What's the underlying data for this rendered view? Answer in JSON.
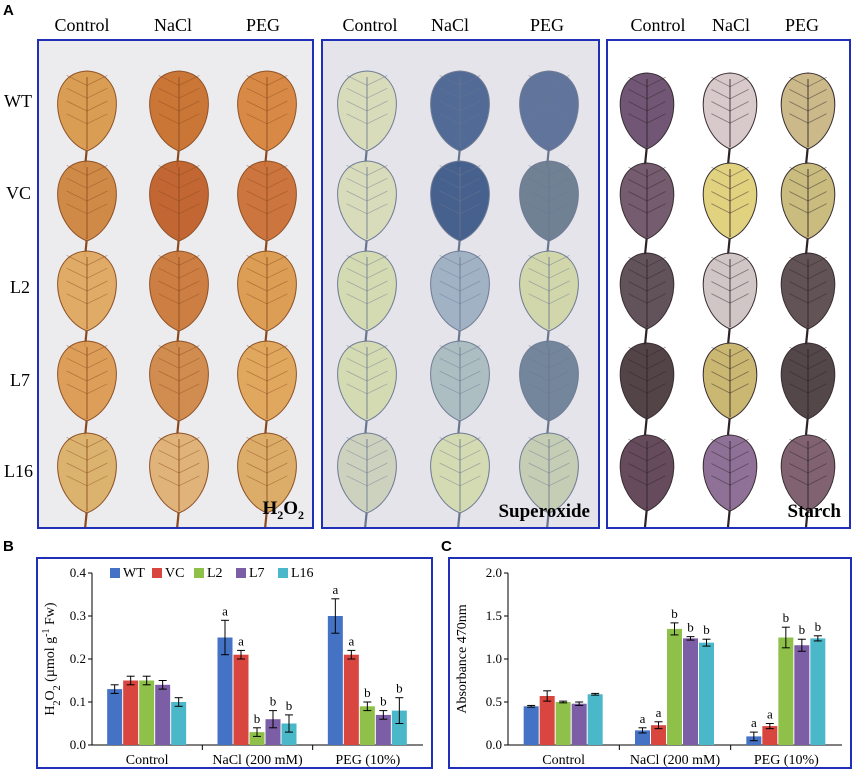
{
  "panels": {
    "a_letter": "A",
    "b_letter": "B",
    "c_letter": "C"
  },
  "photo_panel": {
    "treatments": [
      "Control",
      "NaCl",
      "PEG"
    ],
    "lines": [
      "WT",
      "VC",
      "L2",
      "L7",
      "L16"
    ],
    "stains": [
      "H2O2",
      "Superoxide",
      "Starch"
    ],
    "stain_colors": {
      "h2o2": "#c47a2c",
      "superoxide_blue": "#3e5a8e",
      "superoxide_pale": "#d8dcb8",
      "starch_dark": "#4a3a4a",
      "starch_pale": "#e2d39a"
    }
  },
  "chart_data": [
    {
      "type": "bar",
      "title": "",
      "ylabel": "H2O2 (µmol g-1 Fw)",
      "xlabel": "",
      "categories": [
        "Control",
        "NaCl (200 mM)",
        "PEG (10%)"
      ],
      "ylim": [
        0.0,
        0.4
      ],
      "yticks": [
        "0.0",
        "0.1",
        "0.2",
        "0.3",
        "0.4"
      ],
      "series": [
        {
          "name": "WT",
          "color": "#4472c4",
          "values": [
            0.13,
            0.25,
            0.3
          ],
          "errors": [
            0.01,
            0.04,
            0.04
          ],
          "letters": [
            "",
            "a",
            "a"
          ]
        },
        {
          "name": "VC",
          "color": "#d9453f",
          "values": [
            0.15,
            0.21,
            0.21
          ],
          "errors": [
            0.01,
            0.01,
            0.01
          ],
          "letters": [
            "",
            "a",
            "a"
          ]
        },
        {
          "name": "L2",
          "color": "#8fc14a",
          "values": [
            0.15,
            0.03,
            0.09
          ],
          "errors": [
            0.01,
            0.01,
            0.01
          ],
          "letters": [
            "",
            "b",
            "b"
          ]
        },
        {
          "name": "L7",
          "color": "#7c5ea6",
          "values": [
            0.14,
            0.06,
            0.07
          ],
          "errors": [
            0.01,
            0.02,
            0.01
          ],
          "letters": [
            "",
            "b",
            "b"
          ]
        },
        {
          "name": "L16",
          "color": "#4bb8c9",
          "values": [
            0.1,
            0.05,
            0.08
          ],
          "errors": [
            0.01,
            0.02,
            0.03
          ],
          "letters": [
            "",
            "b",
            "b"
          ]
        }
      ],
      "legend": "top"
    },
    {
      "type": "bar",
      "title": "",
      "ylabel": "Absorbance 470nm",
      "xlabel": "",
      "categories": [
        "Control",
        "NaCl (200 mM)",
        "PEG (10%)"
      ],
      "ylim": [
        0.0,
        2.0
      ],
      "yticks": [
        "0.0",
        "0.5",
        "1.0",
        "1.5",
        "2.0"
      ],
      "series": [
        {
          "name": "WT",
          "color": "#4472c4",
          "values": [
            0.45,
            0.17,
            0.1
          ],
          "errors": [
            0.01,
            0.03,
            0.05
          ],
          "letters": [
            "",
            "a",
            "a"
          ]
        },
        {
          "name": "VC",
          "color": "#d9453f",
          "values": [
            0.57,
            0.23,
            0.22
          ],
          "errors": [
            0.06,
            0.04,
            0.03
          ],
          "letters": [
            "",
            "a",
            "a"
          ]
        },
        {
          "name": "L2",
          "color": "#8fc14a",
          "values": [
            0.5,
            1.35,
            1.25
          ],
          "errors": [
            0.01,
            0.07,
            0.12
          ],
          "letters": [
            "",
            "b",
            "b"
          ]
        },
        {
          "name": "L7",
          "color": "#7c5ea6",
          "values": [
            0.48,
            1.24,
            1.16
          ],
          "errors": [
            0.02,
            0.02,
            0.07
          ],
          "letters": [
            "",
            "b",
            "b"
          ]
        },
        {
          "name": "L16",
          "color": "#4bb8c9",
          "values": [
            0.59,
            1.19,
            1.24
          ],
          "errors": [
            0.01,
            0.04,
            0.03
          ],
          "letters": [
            "",
            "b",
            "b"
          ]
        }
      ],
      "legend": "none"
    }
  ]
}
